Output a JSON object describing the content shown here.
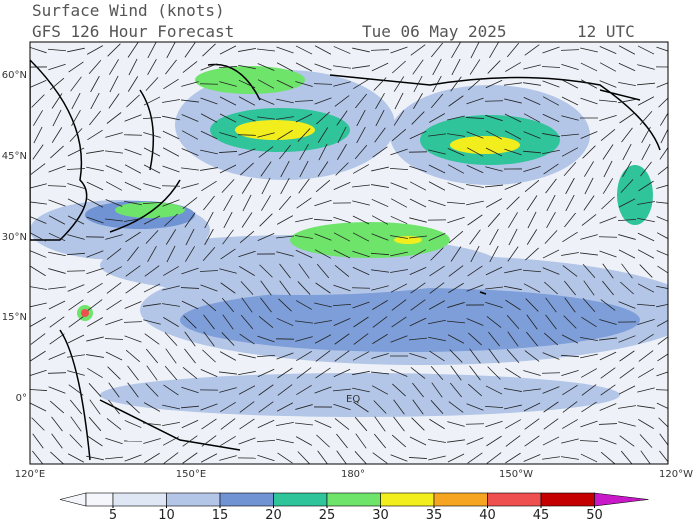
{
  "header": {
    "title": "Surface Wind (knots)",
    "subtitle": "GFS 126 Hour Forecast",
    "date": "Tue 06 May 2025",
    "time": "12 UTC"
  },
  "map": {
    "lat_labels": [
      "60°N",
      "45°N",
      "30°N",
      "15°N",
      "0°"
    ],
    "lon_labels": [
      "120°E",
      "150°E",
      "180°",
      "150°W",
      "120°W"
    ],
    "equator_label": "EQ"
  },
  "colorbar": {
    "labels": [
      5,
      10,
      15,
      20,
      25,
      30,
      35,
      40,
      45,
      50
    ],
    "colors": [
      "#f4f6fb",
      "#dfe7f4",
      "#b3c6e8",
      "#6f93d3",
      "#2fc49a",
      "#6ee46a",
      "#f2ee1e",
      "#f6a522",
      "#ee5050",
      "#c40000",
      "#c818c8"
    ]
  }
}
